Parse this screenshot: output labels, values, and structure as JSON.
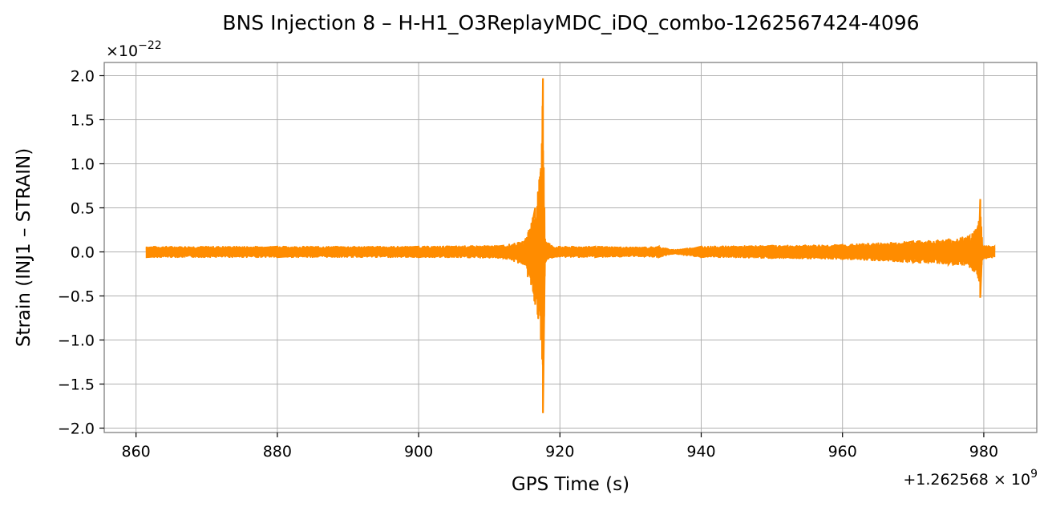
{
  "chart_data": {
    "type": "line",
    "title": "BNS Injection 8 – H-H1_O3ReplayMDC_iDQ_combo-1262567424-4096",
    "xlabel": "GPS Time (s)",
    "ylabel": "Strain (INJ1 – STRAIN)",
    "x_offset_label": "+1.262568 × 10",
    "x_offset_exponent": "9",
    "y_scale_label": "×10",
    "y_scale_exponent": "−22",
    "xlim": [
      855.5,
      987.5
    ],
    "ylim": [
      -2.05,
      2.15
    ],
    "x_ticks": [
      860,
      880,
      900,
      920,
      940,
      960,
      980
    ],
    "x_tick_labels": [
      "860",
      "880",
      "900",
      "920",
      "940",
      "960",
      "980"
    ],
    "y_ticks": [
      2.0,
      1.5,
      1.0,
      0.5,
      0.0,
      -0.5,
      -1.0,
      -1.5,
      -2.0
    ],
    "y_tick_labels": [
      "2.0",
      "1.5",
      "1.0",
      "0.5",
      "0.0",
      "−0.5",
      "−1.0",
      "−1.5",
      "−2.0"
    ],
    "grid": true,
    "series": [
      {
        "color": "#ff8c00",
        "envelope_x": [
          861.5,
          880,
          900,
          912,
          915,
          916.5,
          917.3,
          917.6,
          917.9,
          919,
          925,
          932,
          934,
          936,
          940,
          950,
          960,
          970,
          975,
          978,
          979.2,
          979.5,
          979.8,
          981.5
        ],
        "envelope_upper": [
          0.06,
          0.06,
          0.06,
          0.07,
          0.12,
          0.5,
          0.95,
          1.97,
          0.15,
          0.06,
          0.06,
          0.05,
          0.06,
          0.02,
          0.06,
          0.07,
          0.08,
          0.12,
          0.14,
          0.18,
          0.3,
          0.6,
          0.08,
          0.06
        ],
        "envelope_lower": [
          -0.06,
          -0.06,
          -0.06,
          -0.07,
          -0.15,
          -0.6,
          -1.0,
          -1.83,
          -0.12,
          -0.06,
          -0.06,
          -0.05,
          -0.06,
          -0.02,
          -0.06,
          -0.07,
          -0.08,
          -0.12,
          -0.14,
          -0.18,
          -0.3,
          -0.52,
          -0.08,
          -0.06
        ]
      }
    ]
  }
}
